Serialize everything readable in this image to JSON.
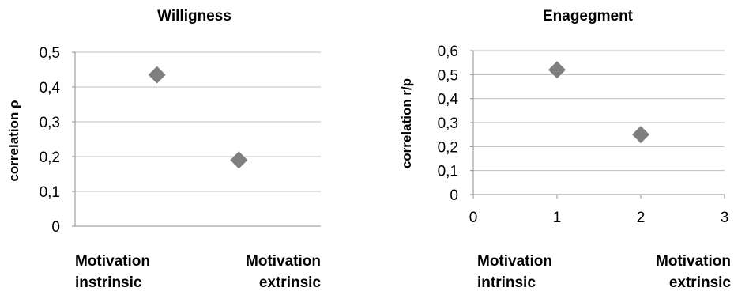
{
  "chart_data": [
    {
      "type": "scatter",
      "title": "Willigness",
      "ylabel": "correlation  ρ",
      "xlabel": "",
      "ylim": [
        0,
        0.5
      ],
      "yticks": [
        "0",
        "0,1",
        "0,2",
        "0,3",
        "0,4",
        "0,5"
      ],
      "xlim": [
        0,
        3
      ],
      "show_x_tick_labels": false,
      "grid": true,
      "marker": "diamond",
      "marker_color": "#7f7f7f",
      "categories": [
        {
          "line1": "Motivation",
          "line2": "instrinsic",
          "align": "left"
        },
        {
          "line1": "Motivation",
          "line2": "extrinsic",
          "align": "right"
        }
      ],
      "points": [
        {
          "x": 1,
          "y": 0.435
        },
        {
          "x": 2,
          "y": 0.19
        }
      ]
    },
    {
      "type": "scatter",
      "title": "Enagegment",
      "ylabel": "correlation r/p",
      "xlabel": "",
      "ylim": [
        0,
        0.6
      ],
      "yticks": [
        "0",
        "0,1",
        "0,2",
        "0,3",
        "0,4",
        "0,5",
        "0,6"
      ],
      "xlim": [
        0,
        3
      ],
      "xticks": [
        "0",
        "1",
        "2",
        "3"
      ],
      "show_x_tick_labels": true,
      "grid": true,
      "marker": "diamond",
      "marker_color": "#7f7f7f",
      "categories": [
        {
          "line1": "Motivation",
          "line2": "intrinsic",
          "align": "left"
        },
        {
          "line1": "Motivation",
          "line2": "extrinsic",
          "align": "right"
        }
      ],
      "points": [
        {
          "x": 1,
          "y": 0.52
        },
        {
          "x": 2,
          "y": 0.25
        }
      ]
    }
  ]
}
